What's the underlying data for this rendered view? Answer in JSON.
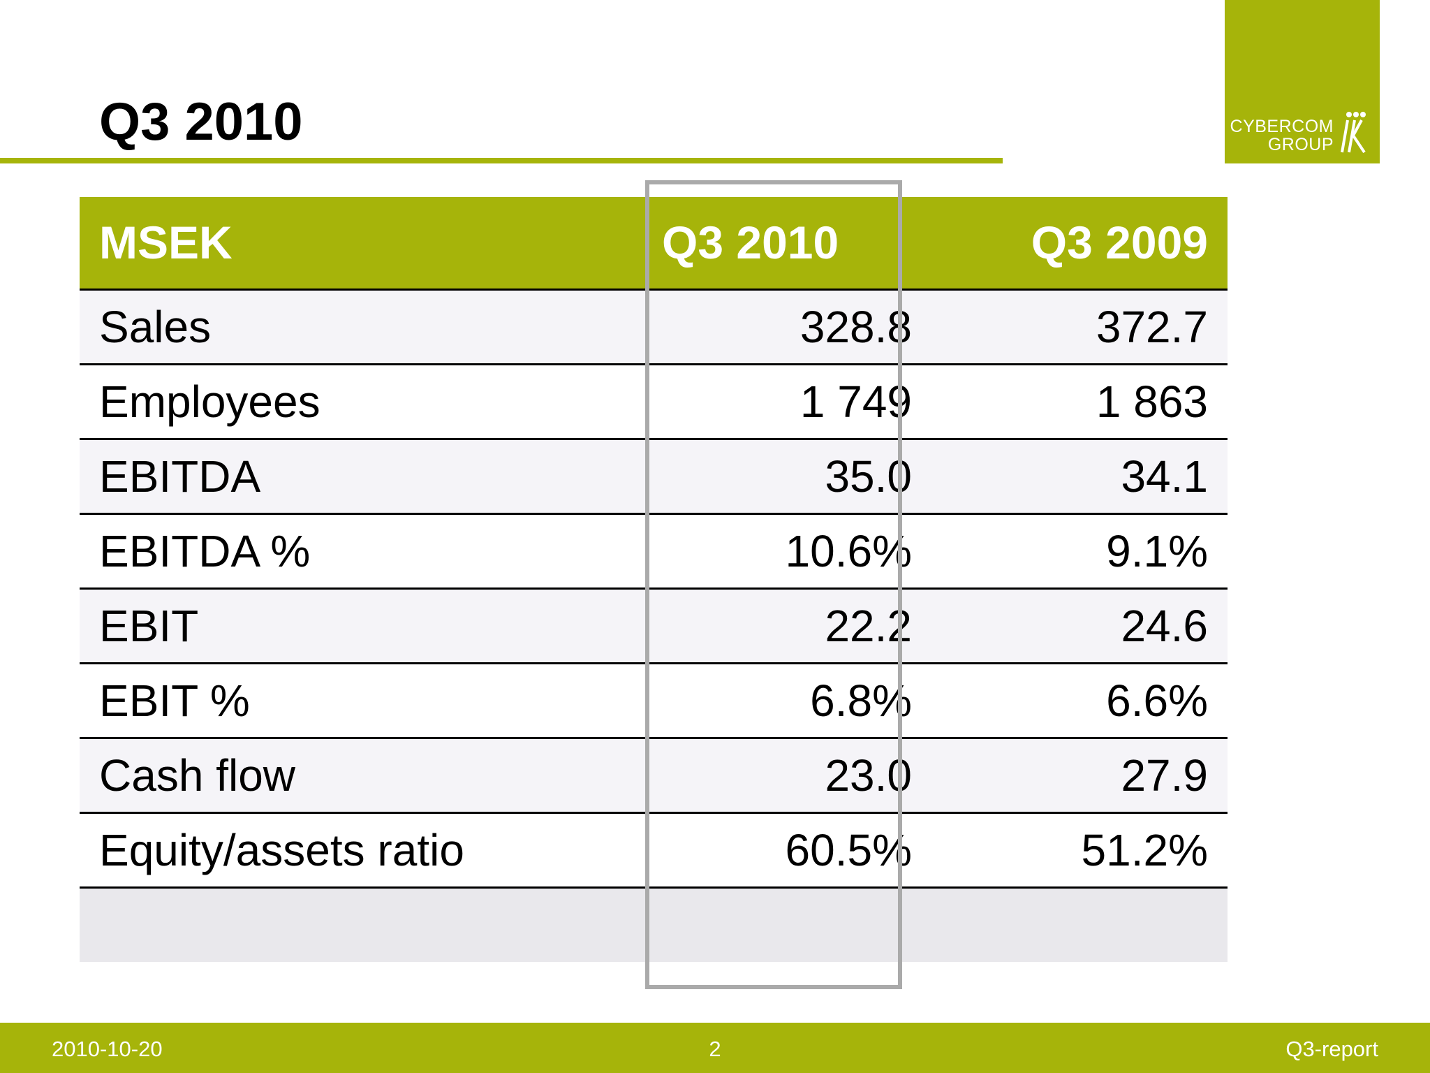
{
  "logo": {
    "line1": "CYBERCOM",
    "line2": "GROUP",
    "mark_icon": "cybercom-figures-icon",
    "color": "#a6b40a"
  },
  "title": "Q3 2010",
  "table": {
    "headers": [
      "MSEK",
      "Q3 2010",
      "Q3 2009"
    ],
    "rows": [
      [
        "Sales",
        "328.8",
        "372.7"
      ],
      [
        "Employees",
        "1 749",
        "1 863"
      ],
      [
        "EBITDA",
        "35.0",
        "34.1"
      ],
      [
        "EBITDA %",
        "10.6%",
        "9.1%"
      ],
      [
        "EBIT",
        "22.2",
        "24.6"
      ],
      [
        "EBIT %",
        "6.8%",
        "6.6%"
      ],
      [
        "Cash flow",
        "23.0",
        "27.9"
      ],
      [
        "Equity/assets ratio",
        "60.5%",
        "51.2%"
      ]
    ]
  },
  "footer": {
    "date": "2010-10-20",
    "page": "2",
    "report": "Q3-report"
  }
}
